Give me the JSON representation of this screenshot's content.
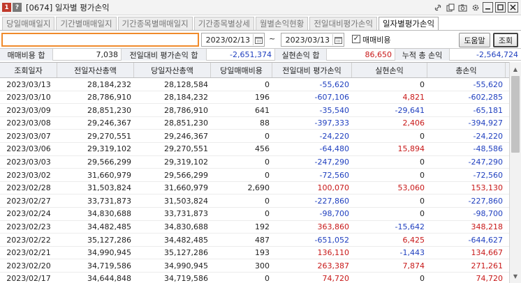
{
  "window": {
    "icon_left": "1",
    "icon_right": "?",
    "title": "[0674] 일자별 평가손익",
    "controls": [
      "link-icon",
      "copy-icon",
      "camera-icon",
      "gear-icon",
      "minimize-icon",
      "maximize-icon",
      "close-icon"
    ]
  },
  "tabs": [
    {
      "label": "당일매매일지",
      "active": false
    },
    {
      "label": "기간별매매일지",
      "active": false
    },
    {
      "label": "기간종목별매매일지",
      "active": false
    },
    {
      "label": "기간종목별상세",
      "active": false
    },
    {
      "label": "월별손익현황",
      "active": false
    },
    {
      "label": "전일대비평가손익",
      "active": false
    },
    {
      "label": "일자별평가손익",
      "active": true
    }
  ],
  "controls": {
    "account_value": "",
    "start_date": "2023/02/13",
    "tilde": "~",
    "end_date": "2023/03/13",
    "include_fees_checked": true,
    "include_fees_label": "매매비용",
    "help_label": "도움말",
    "query_label": "조회"
  },
  "summary": {
    "fee_label": "매매비용 합",
    "fee_value": "7,038",
    "daily_eval_label": "전일대비 평가손익 합",
    "daily_eval_value": "-2,651,374",
    "realized_label": "실현손익 합",
    "realized_value": "86,650",
    "cumulative_label": "누적 총 손익",
    "cumulative_value": "-2,564,724"
  },
  "table": {
    "headers": [
      "조회일자",
      "전일자산총액",
      "당일자산총액",
      "당일매매비용",
      "전일대비 평가손익",
      "실현손익",
      "총손익"
    ],
    "rows": [
      [
        "2023/03/13",
        "28,184,232",
        "28,128,584",
        "0",
        "-55,620",
        "0",
        "-55,620"
      ],
      [
        "2023/03/10",
        "28,786,910",
        "28,184,232",
        "196",
        "-607,106",
        "4,821",
        "-602,285"
      ],
      [
        "2023/03/09",
        "28,851,230",
        "28,786,910",
        "641",
        "-35,540",
        "-29,641",
        "-65,181"
      ],
      [
        "2023/03/08",
        "29,246,367",
        "28,851,230",
        "88",
        "-397,333",
        "2,406",
        "-394,927"
      ],
      [
        "2023/03/07",
        "29,270,551",
        "29,246,367",
        "0",
        "-24,220",
        "0",
        "-24,220"
      ],
      [
        "2023/03/06",
        "29,319,102",
        "29,270,551",
        "456",
        "-64,480",
        "15,894",
        "-48,586"
      ],
      [
        "2023/03/03",
        "29,566,299",
        "29,319,102",
        "0",
        "-247,290",
        "0",
        "-247,290"
      ],
      [
        "2023/03/02",
        "31,660,979",
        "29,566,299",
        "0",
        "-72,560",
        "0",
        "-72,560"
      ],
      [
        "2023/02/28",
        "31,503,824",
        "31,660,979",
        "2,690",
        "100,070",
        "53,060",
        "153,130"
      ],
      [
        "2023/02/27",
        "33,731,873",
        "31,503,824",
        "0",
        "-227,860",
        "0",
        "-227,860"
      ],
      [
        "2023/02/24",
        "34,830,688",
        "33,731,873",
        "0",
        "-98,700",
        "0",
        "-98,700"
      ],
      [
        "2023/02/23",
        "34,482,485",
        "34,830,688",
        "192",
        "363,860",
        "-15,642",
        "348,218"
      ],
      [
        "2023/02/22",
        "35,127,286",
        "34,482,485",
        "487",
        "-651,052",
        "6,425",
        "-644,627"
      ],
      [
        "2023/02/21",
        "34,990,945",
        "35,127,286",
        "193",
        "136,110",
        "-1,443",
        "134,667"
      ],
      [
        "2023/02/20",
        "34,719,586",
        "34,990,945",
        "300",
        "263,387",
        "7,874",
        "271,261"
      ],
      [
        "2023/02/17",
        "34,644,848",
        "34,719,586",
        "0",
        "74,720",
        "0",
        "74,720"
      ]
    ]
  },
  "colors": {
    "negative": "#1f3fbf",
    "positive": "#c81818",
    "accent_input_border": "#f08a2b"
  }
}
